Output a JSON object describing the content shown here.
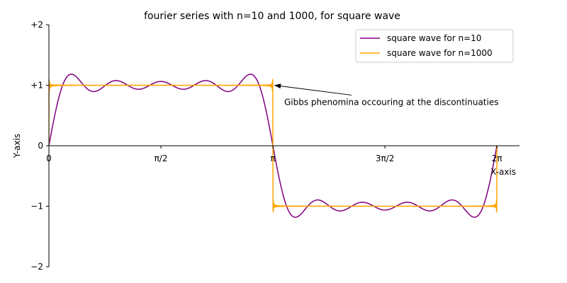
{
  "chart_data": {
    "type": "line",
    "title": "fourier series with n=10 and 1000, for square wave",
    "xlabel": "X-axis",
    "ylabel": "Y-axis",
    "xlim": [
      0,
      6.6
    ],
    "ylim": [
      -2,
      2
    ],
    "grid": false,
    "legend_position": "top-right",
    "x_ticks": [
      {
        "value": 0,
        "label": "0"
      },
      {
        "value": 1.5708,
        "label": "π/2"
      },
      {
        "value": 3.1416,
        "label": "π"
      },
      {
        "value": 4.7124,
        "label": "3π/2"
      },
      {
        "value": 6.2832,
        "label": "2π"
      }
    ],
    "y_ticks": [
      {
        "value": 2,
        "label": "+2"
      },
      {
        "value": 1,
        "label": "+1"
      },
      {
        "value": 0,
        "label": "0"
      },
      {
        "value": -1,
        "label": "−1"
      },
      {
        "value": -2,
        "label": "−2"
      }
    ],
    "function": "fourier series of square wave, sum over odd k of 4·sin(kx)/(kπ)",
    "x_range": [
      0,
      6.2832
    ],
    "series": [
      {
        "name": "square wave for n=10",
        "n": 10,
        "color": "#800080"
      },
      {
        "name": "square wave for n=1000",
        "n": 1000,
        "color": "#ffa500"
      }
    ],
    "annotations": [
      {
        "text": "Gibbs phenomina occouring at the discontinuaties",
        "point": [
          3.1416,
          1.0
        ],
        "text_position": [
          3.3,
          0.72
        ]
      }
    ]
  }
}
